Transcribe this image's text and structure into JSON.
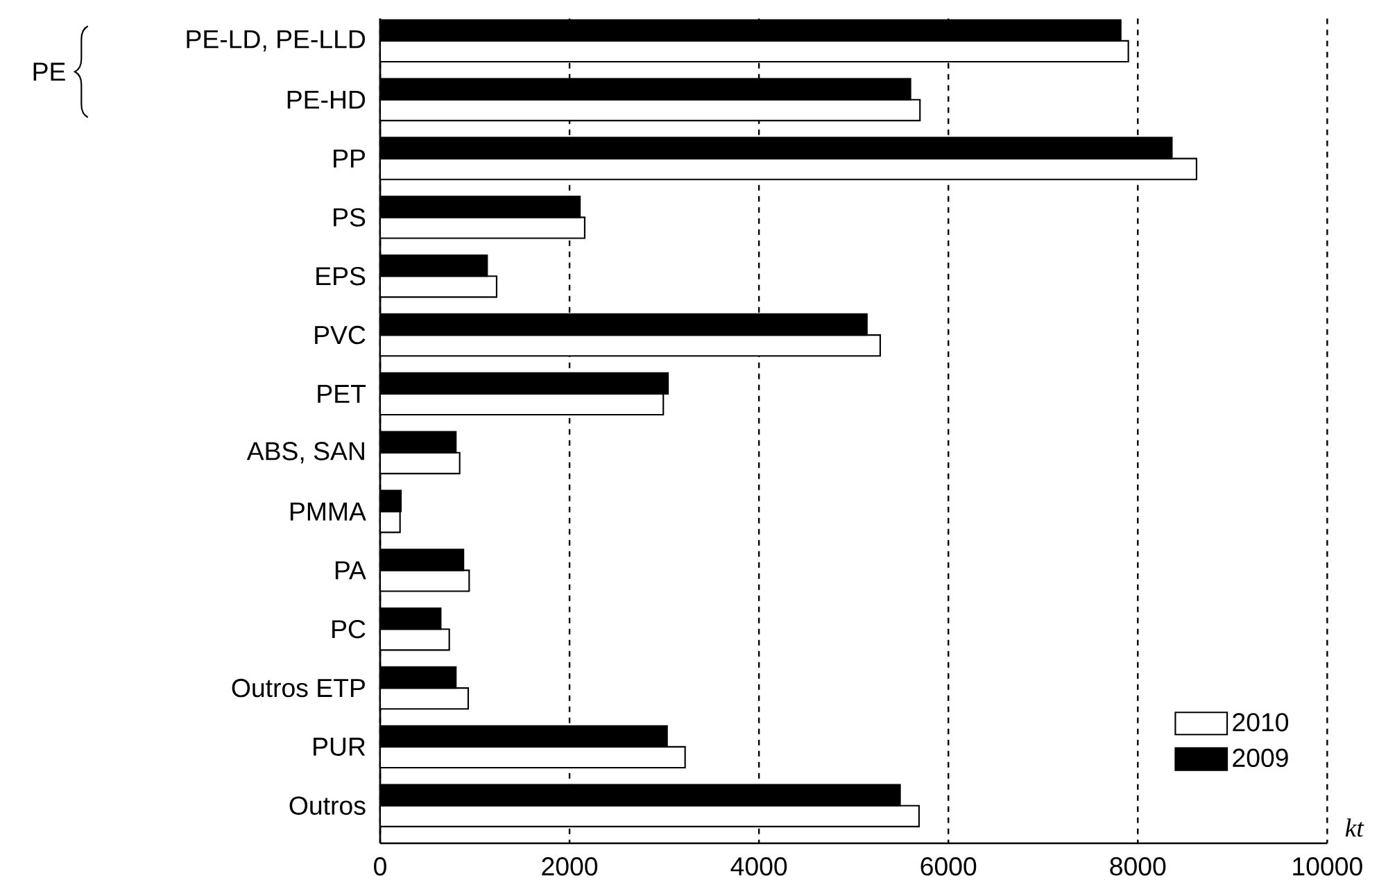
{
  "chart_data": {
    "type": "bar",
    "orientation": "horizontal",
    "xlabel": "kt",
    "categories": [
      "PE-LD, PE-LLD",
      "PE-HD",
      "PP",
      "PS",
      "EPS",
      "PVC",
      "PET",
      "ABS, SAN",
      "PMMA",
      "PA",
      "PC",
      "Outros ETP",
      "PUR",
      "Outros"
    ],
    "series": [
      {
        "name": "2010",
        "color": "#ffffff",
        "values": [
          7900,
          5700,
          8620,
          2160,
          1230,
          5280,
          2990,
          840,
          210,
          940,
          730,
          930,
          3220,
          5690
        ]
      },
      {
        "name": "2009",
        "color": "#000000",
        "values": [
          7820,
          5600,
          8360,
          2110,
          1130,
          5140,
          3040,
          800,
          220,
          880,
          640,
          800,
          3030,
          5490
        ]
      }
    ],
    "xlim": [
      0,
      10000
    ],
    "xticks": [
      0,
      2000,
      4000,
      6000,
      8000,
      10000
    ],
    "grid": "x",
    "legend": "bottom right",
    "annotations": [
      "PE"
    ]
  }
}
